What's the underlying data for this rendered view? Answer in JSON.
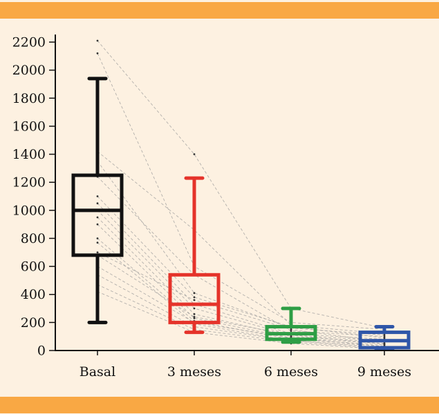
{
  "chart_data": {
    "type": "box",
    "categories": [
      "Basal",
      "3 meses",
      "6 meses",
      "9 meses"
    ],
    "y_ticks": [
      "0",
      "200",
      "400",
      "600",
      "800",
      "1000",
      "1200",
      "1400",
      "1600",
      "1800",
      "2000",
      "2200"
    ],
    "ylim": [
      0,
      2200
    ],
    "grid": false,
    "boxes": [
      {
        "category": "Basal",
        "min": 200,
        "q1": 680,
        "median": 1000,
        "q3": 1250,
        "max": 1940,
        "color": "#111111"
      },
      {
        "category": "3 meses",
        "min": 130,
        "q1": 200,
        "median": 330,
        "q3": 540,
        "max": 1230,
        "color": "#e5332a"
      },
      {
        "category": "6 meses",
        "min": 60,
        "q1": 80,
        "median": 120,
        "q3": 170,
        "max": 300,
        "color": "#2e9e45"
      },
      {
        "category": "9 meses",
        "min": 10,
        "q1": 20,
        "median": 70,
        "q3": 130,
        "max": 170,
        "color": "#2f56a8"
      }
    ],
    "individual_trajectories": [
      [
        2210,
        1400,
        300,
        160
      ],
      [
        2120,
        600,
        200,
        150
      ],
      [
        1420,
        860,
        180,
        120
      ],
      [
        1350,
        410,
        160,
        110
      ],
      [
        1240,
        540,
        140,
        100
      ],
      [
        1100,
        380,
        170,
        90
      ],
      [
        1050,
        330,
        120,
        80
      ],
      [
        1000,
        300,
        110,
        70
      ],
      [
        950,
        260,
        100,
        60
      ],
      [
        900,
        230,
        90,
        50
      ],
      [
        800,
        210,
        80,
        40
      ],
      [
        770,
        190,
        70,
        30
      ],
      [
        700,
        360,
        150,
        60
      ],
      [
        680,
        240,
        110,
        45
      ],
      [
        600,
        200,
        90,
        30
      ],
      [
        540,
        170,
        70,
        20
      ],
      [
        470,
        150,
        60,
        15
      ],
      [
        420,
        130,
        50,
        10
      ]
    ],
    "colors": {
      "band": "#f9a844",
      "background": "#fdf1e1",
      "trajectory": "#9a9a9a"
    }
  }
}
